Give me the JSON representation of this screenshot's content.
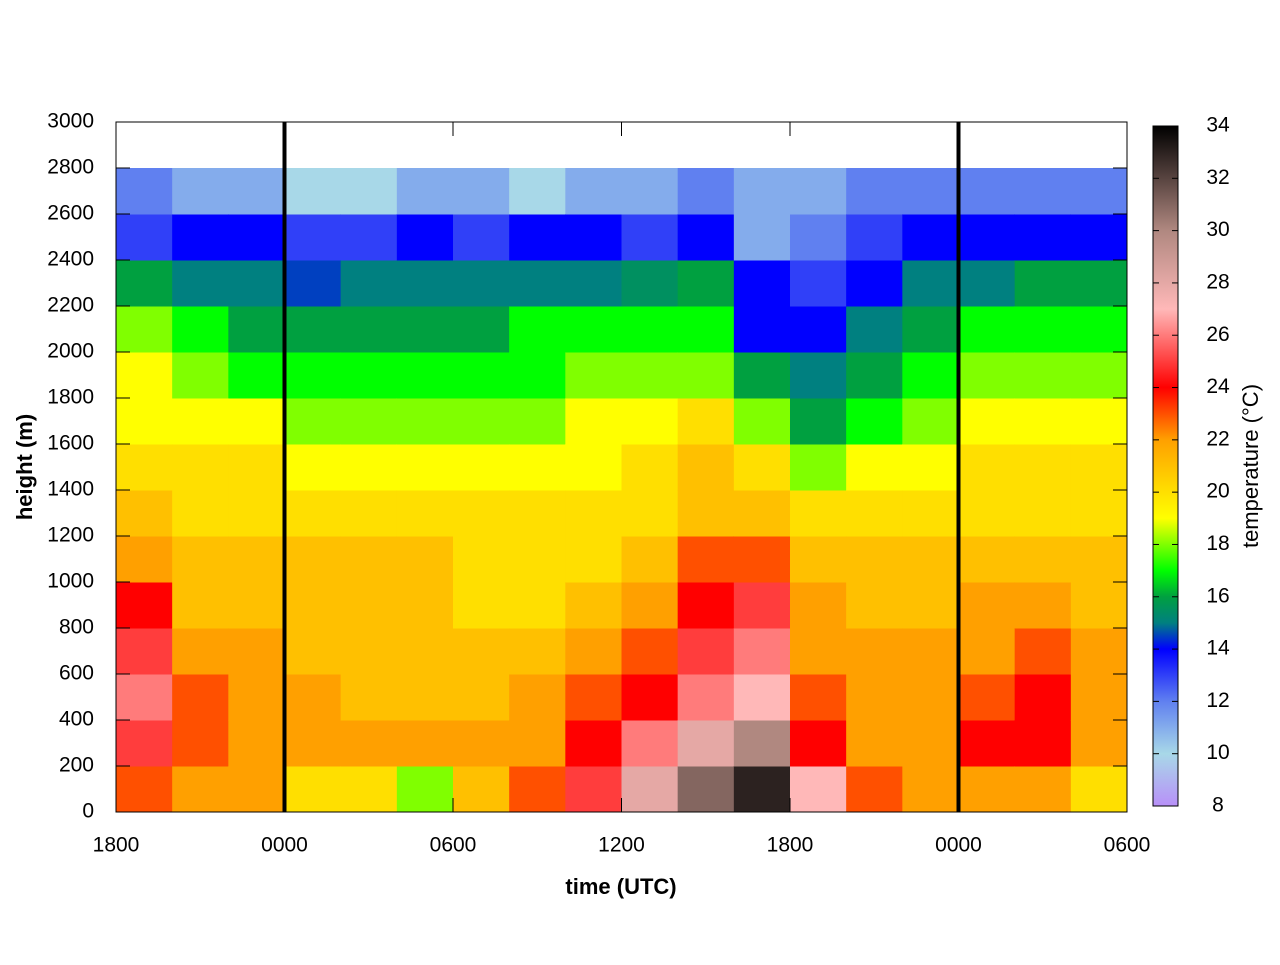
{
  "chart_data": {
    "type": "heatmap",
    "xlabel": "time (UTC)",
    "ylabel": "height (m)",
    "colorbar_label": "temperature (°C)",
    "x": [
      0,
      2,
      4,
      6,
      8,
      10,
      12,
      14,
      16,
      18,
      20,
      22,
      24,
      26,
      28,
      30,
      32,
      34,
      36
    ],
    "y": [
      0,
      200,
      400,
      600,
      800,
      1000,
      1200,
      1400,
      1600,
      1800,
      2000,
      2200,
      2400,
      2600,
      2800
    ],
    "z": [
      [
        23,
        25,
        26,
        25,
        24,
        22,
        21,
        20,
        19,
        19,
        18,
        16,
        13,
        12
      ],
      [
        22,
        23,
        23,
        22,
        21,
        21,
        20,
        20,
        19,
        18,
        17,
        15,
        14,
        11
      ],
      [
        22,
        22,
        22,
        22,
        21,
        21,
        20,
        20,
        19,
        17,
        16,
        15,
        14,
        11
      ],
      [
        20,
        22,
        22,
        21,
        21,
        21,
        20,
        19,
        18,
        17,
        16,
        14.5,
        13,
        10
      ],
      [
        20,
        22,
        21,
        21,
        21,
        21,
        20,
        19,
        18,
        17,
        16,
        15,
        13,
        10
      ],
      [
        18,
        22,
        21,
        21,
        21,
        21,
        20,
        19,
        18,
        17,
        16,
        15,
        14,
        11
      ],
      [
        21,
        22,
        21,
        21,
        20,
        20,
        20,
        19,
        18,
        17,
        16,
        15,
        13,
        11
      ],
      [
        23,
        22,
        22,
        21,
        20,
        20,
        20,
        19,
        18,
        17,
        17,
        15,
        14,
        10
      ],
      [
        25,
        24,
        23,
        22,
        21,
        20,
        20,
        19,
        19,
        18,
        17,
        15,
        14,
        11
      ],
      [
        28,
        26,
        24,
        23,
        22,
        21,
        20,
        20,
        19,
        18,
        17,
        15.5,
        13,
        11
      ],
      [
        31,
        28,
        26,
        25,
        24,
        23,
        21,
        21,
        20,
        18,
        17,
        16,
        14,
        12
      ],
      [
        33,
        30,
        27,
        26,
        25,
        23,
        21,
        20,
        18,
        16,
        14,
        14,
        11,
        11
      ],
      [
        27,
        24,
        23,
        22,
        22,
        21,
        20,
        18,
        16,
        15,
        14,
        13,
        12,
        11
      ],
      [
        23,
        22,
        22,
        22,
        21,
        21,
        20,
        19,
        17,
        16,
        15,
        14,
        13,
        12
      ],
      [
        22,
        22,
        22,
        22,
        21,
        21,
        20,
        19,
        18,
        17,
        16,
        15,
        14,
        12
      ],
      [
        22,
        24,
        23,
        22,
        22,
        21,
        20,
        20,
        19,
        18,
        17,
        15,
        14,
        12
      ],
      [
        22,
        24,
        24,
        23,
        22,
        21,
        20,
        20,
        19,
        18,
        17,
        16,
        14,
        12
      ],
      [
        20,
        22,
        22,
        22,
        21,
        21,
        20,
        20,
        19,
        18,
        17,
        16,
        14,
        12
      ]
    ],
    "xlim": [
      0,
      36
    ],
    "ylim": [
      0,
      3000
    ],
    "zlim": [
      8,
      34
    ],
    "xticks": [
      {
        "value": 0,
        "label": "1800"
      },
      {
        "value": 6,
        "label": "0000"
      },
      {
        "value": 12,
        "label": "0600"
      },
      {
        "value": 18,
        "label": "1200"
      },
      {
        "value": 24,
        "label": "1800"
      },
      {
        "value": 30,
        "label": "0000"
      },
      {
        "value": 36,
        "label": "0600"
      }
    ],
    "yticks": [
      0,
      200,
      400,
      600,
      800,
      1000,
      1200,
      1400,
      1600,
      1800,
      2000,
      2200,
      2400,
      2600,
      2800,
      3000
    ],
    "zticks": [
      8,
      10,
      12,
      14,
      16,
      18,
      20,
      22,
      24,
      26,
      28,
      30,
      32,
      34
    ],
    "vlines": [
      6,
      30
    ],
    "colormap": [
      [
        8,
        "#b890f8"
      ],
      [
        10,
        "#a8d8e8"
      ],
      [
        12,
        "#6080f0"
      ],
      [
        14,
        "#0000ff"
      ],
      [
        15,
        "#008080"
      ],
      [
        16,
        "#00a040"
      ],
      [
        17,
        "#00ff00"
      ],
      [
        19,
        "#ffff00"
      ],
      [
        22,
        "#ffa000"
      ],
      [
        24,
        "#ff0000"
      ],
      [
        27,
        "#ffb8b8"
      ],
      [
        30,
        "#b08880"
      ],
      [
        34,
        "#000000"
      ]
    ]
  }
}
